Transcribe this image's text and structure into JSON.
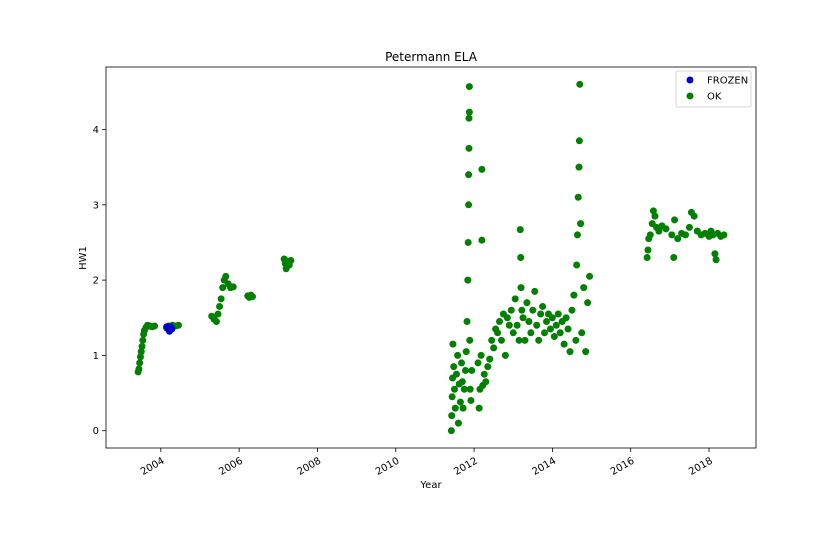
{
  "chart_data": {
    "type": "scatter",
    "title": "Petermann ELA",
    "xlabel": "Year",
    "ylabel": "HW1",
    "xlim": [
      2002.6,
      2019.2
    ],
    "ylim": [
      -0.23,
      4.83
    ],
    "x_ticks": [
      2004,
      2006,
      2008,
      2010,
      2012,
      2014,
      2016,
      2018
    ],
    "x_tick_labels": [
      "2004",
      "2006",
      "2008",
      "2010",
      "2012",
      "2014",
      "2016",
      "2018"
    ],
    "y_ticks": [
      0,
      1,
      2,
      3,
      4
    ],
    "y_tick_labels": [
      "0",
      "1",
      "2",
      "3",
      "4"
    ],
    "grid": false,
    "legend_position": "top-right",
    "series": [
      {
        "name": "FROZEN",
        "color": "#0000cc",
        "points": [
          [
            2004.15,
            1.38
          ],
          [
            2004.18,
            1.36
          ],
          [
            2004.22,
            1.32
          ],
          [
            2004.25,
            1.38
          ],
          [
            2004.28,
            1.35
          ]
        ]
      },
      {
        "name": "OK",
        "color": "#007f00",
        "points": [
          [
            2003.42,
            0.78
          ],
          [
            2003.44,
            0.82
          ],
          [
            2003.46,
            0.9
          ],
          [
            2003.48,
            0.98
          ],
          [
            2003.5,
            1.05
          ],
          [
            2003.52,
            1.12
          ],
          [
            2003.54,
            1.2
          ],
          [
            2003.56,
            1.28
          ],
          [
            2003.58,
            1.33
          ],
          [
            2003.62,
            1.37
          ],
          [
            2003.66,
            1.4
          ],
          [
            2003.72,
            1.39
          ],
          [
            2003.78,
            1.38
          ],
          [
            2003.84,
            1.39
          ],
          [
            2004.15,
            1.36
          ],
          [
            2004.2,
            1.39
          ],
          [
            2004.3,
            1.4
          ],
          [
            2004.38,
            1.39
          ],
          [
            2004.45,
            1.4
          ],
          [
            2005.3,
            1.52
          ],
          [
            2005.36,
            1.48
          ],
          [
            2005.42,
            1.45
          ],
          [
            2005.46,
            1.55
          ],
          [
            2005.5,
            1.65
          ],
          [
            2005.54,
            1.75
          ],
          [
            2005.58,
            1.9
          ],
          [
            2005.62,
            2.0
          ],
          [
            2005.66,
            2.05
          ],
          [
            2005.72,
            1.95
          ],
          [
            2005.78,
            1.9
          ],
          [
            2005.85,
            1.91
          ],
          [
            2006.22,
            1.79
          ],
          [
            2006.26,
            1.77
          ],
          [
            2006.3,
            1.8
          ],
          [
            2006.34,
            1.78
          ],
          [
            2007.15,
            2.28
          ],
          [
            2007.18,
            2.22
          ],
          [
            2007.2,
            2.15
          ],
          [
            2007.24,
            2.25
          ],
          [
            2007.28,
            2.2
          ],
          [
            2007.32,
            2.26
          ],
          [
            2011.42,
            0.0
          ],
          [
            2011.43,
            0.2
          ],
          [
            2011.44,
            0.45
          ],
          [
            2011.45,
            0.7
          ],
          [
            2011.46,
            1.15
          ],
          [
            2011.48,
            0.85
          ],
          [
            2011.5,
            0.55
          ],
          [
            2011.52,
            0.3
          ],
          [
            2011.55,
            0.75
          ],
          [
            2011.58,
            1.0
          ],
          [
            2011.6,
            0.1
          ],
          [
            2011.62,
            0.62
          ],
          [
            2011.65,
            0.38
          ],
          [
            2011.68,
            0.9
          ],
          [
            2011.7,
            0.65
          ],
          [
            2011.72,
            0.3
          ],
          [
            2011.75,
            0.55
          ],
          [
            2011.78,
            0.8
          ],
          [
            2011.8,
            1.05
          ],
          [
            2011.82,
            1.45
          ],
          [
            2011.84,
            2.0
          ],
          [
            2011.85,
            2.5
          ],
          [
            2011.86,
            3.0
          ],
          [
            2011.86,
            3.4
          ],
          [
            2011.87,
            3.75
          ],
          [
            2011.87,
            4.15
          ],
          [
            2011.88,
            4.23
          ],
          [
            2011.88,
            4.57
          ],
          [
            2011.89,
            1.2
          ],
          [
            2011.9,
            0.55
          ],
          [
            2011.92,
            0.4
          ],
          [
            2011.94,
            0.8
          ],
          [
            2012.1,
            0.9
          ],
          [
            2012.13,
            0.3
          ],
          [
            2012.15,
            0.55
          ],
          [
            2012.18,
            1.0
          ],
          [
            2012.2,
            2.53
          ],
          [
            2012.2,
            3.47
          ],
          [
            2012.22,
            0.6
          ],
          [
            2012.26,
            0.75
          ],
          [
            2012.3,
            0.65
          ],
          [
            2012.35,
            0.85
          ],
          [
            2012.4,
            0.95
          ],
          [
            2012.45,
            1.2
          ],
          [
            2012.5,
            1.1
          ],
          [
            2012.55,
            1.35
          ],
          [
            2012.6,
            1.3
          ],
          [
            2012.65,
            1.45
          ],
          [
            2012.7,
            1.2
          ],
          [
            2012.75,
            1.55
          ],
          [
            2012.8,
            1.0
          ],
          [
            2012.85,
            1.5
          ],
          [
            2012.9,
            1.4
          ],
          [
            2012.95,
            1.6
          ],
          [
            2013.0,
            1.3
          ],
          [
            2013.05,
            1.75
          ],
          [
            2013.1,
            1.4
          ],
          [
            2013.15,
            1.2
          ],
          [
            2013.18,
            2.67
          ],
          [
            2013.19,
            2.3
          ],
          [
            2013.2,
            1.9
          ],
          [
            2013.22,
            1.6
          ],
          [
            2013.25,
            1.5
          ],
          [
            2013.3,
            1.2
          ],
          [
            2013.35,
            1.7
          ],
          [
            2013.4,
            1.45
          ],
          [
            2013.45,
            1.3
          ],
          [
            2013.5,
            1.6
          ],
          [
            2013.55,
            1.85
          ],
          [
            2013.6,
            1.4
          ],
          [
            2013.65,
            1.2
          ],
          [
            2013.7,
            1.55
          ],
          [
            2013.75,
            1.65
          ],
          [
            2013.8,
            1.3
          ],
          [
            2013.85,
            1.45
          ],
          [
            2013.9,
            1.55
          ],
          [
            2013.95,
            1.35
          ],
          [
            2014.0,
            1.5
          ],
          [
            2014.05,
            1.25
          ],
          [
            2014.1,
            1.4
          ],
          [
            2014.15,
            1.55
          ],
          [
            2014.2,
            1.3
          ],
          [
            2014.25,
            1.45
          ],
          [
            2014.3,
            1.15
          ],
          [
            2014.35,
            1.5
          ],
          [
            2014.4,
            1.35
          ],
          [
            2014.45,
            1.05
          ],
          [
            2014.5,
            1.6
          ],
          [
            2014.55,
            1.8
          ],
          [
            2014.6,
            1.2
          ],
          [
            2014.62,
            2.2
          ],
          [
            2014.64,
            2.6
          ],
          [
            2014.66,
            3.1
          ],
          [
            2014.68,
            3.5
          ],
          [
            2014.69,
            3.85
          ],
          [
            2014.7,
            4.6
          ],
          [
            2014.72,
            2.75
          ],
          [
            2014.75,
            1.3
          ],
          [
            2014.8,
            1.9
          ],
          [
            2014.85,
            1.05
          ],
          [
            2014.9,
            1.7
          ],
          [
            2014.95,
            2.05
          ],
          [
            2016.42,
            2.3
          ],
          [
            2016.44,
            2.4
          ],
          [
            2016.46,
            2.55
          ],
          [
            2016.5,
            2.6
          ],
          [
            2016.55,
            2.75
          ],
          [
            2016.58,
            2.92
          ],
          [
            2016.62,
            2.85
          ],
          [
            2016.66,
            2.7
          ],
          [
            2016.72,
            2.65
          ],
          [
            2016.8,
            2.72
          ],
          [
            2016.9,
            2.68
          ],
          [
            2017.05,
            2.6
          ],
          [
            2017.1,
            2.3
          ],
          [
            2017.12,
            2.8
          ],
          [
            2017.2,
            2.55
          ],
          [
            2017.3,
            2.62
          ],
          [
            2017.4,
            2.6
          ],
          [
            2017.5,
            2.7
          ],
          [
            2017.55,
            2.9
          ],
          [
            2017.62,
            2.85
          ],
          [
            2017.7,
            2.65
          ],
          [
            2017.8,
            2.6
          ],
          [
            2017.9,
            2.62
          ],
          [
            2018.0,
            2.58
          ],
          [
            2018.05,
            2.65
          ],
          [
            2018.1,
            2.6
          ],
          [
            2018.15,
            2.35
          ],
          [
            2018.18,
            2.27
          ],
          [
            2018.22,
            2.62
          ],
          [
            2018.3,
            2.58
          ],
          [
            2018.38,
            2.6
          ]
        ]
      }
    ]
  }
}
